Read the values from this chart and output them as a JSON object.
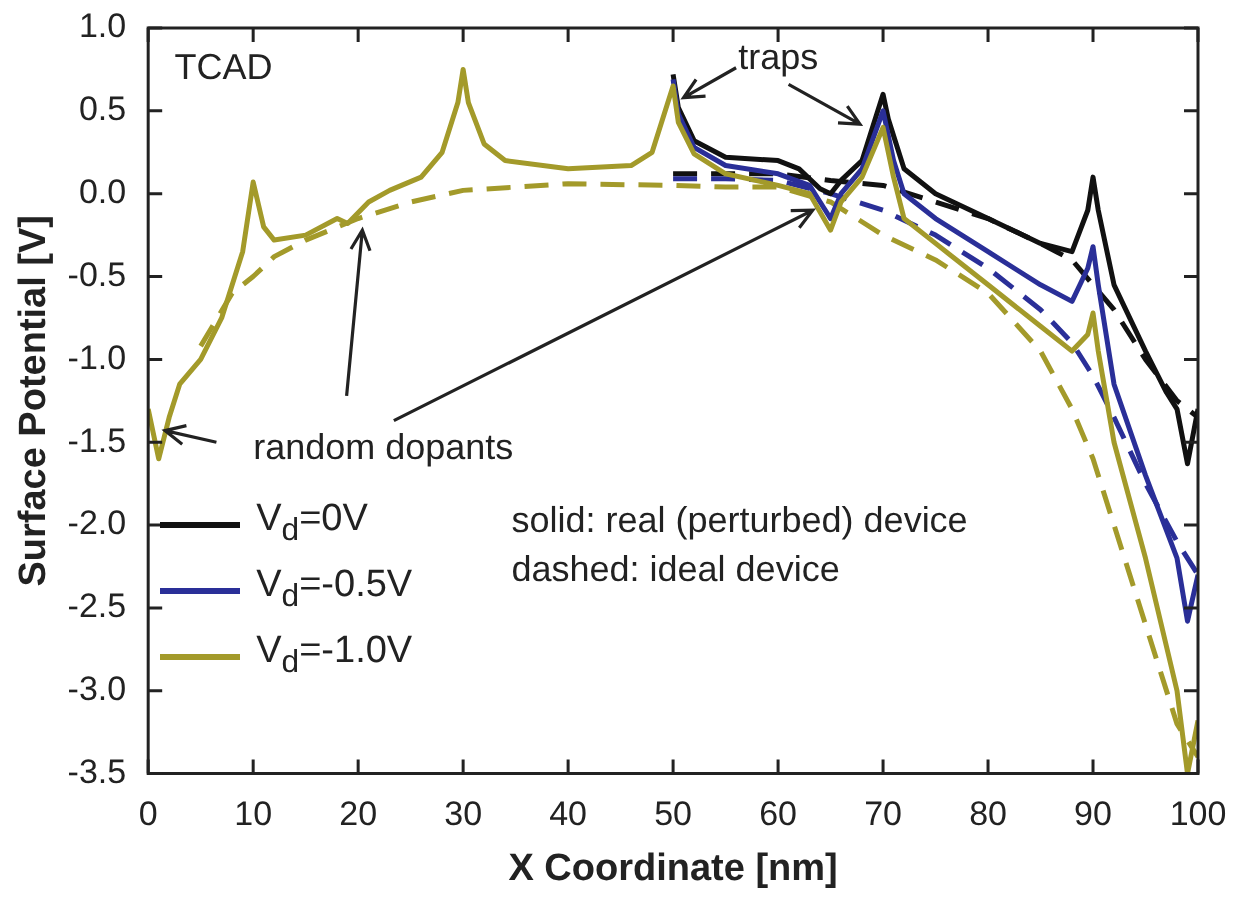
{
  "chart_data": {
    "type": "line",
    "xlabel": "X Coordinate [nm]",
    "ylabel": "Surface Potential [V]",
    "annotations": [
      "TCAD",
      "traps",
      "random dopants",
      "solid: real (perturbed) device",
      "dashed: ideal device"
    ],
    "xlim": [
      0,
      100
    ],
    "xticks": [
      0,
      10,
      20,
      30,
      40,
      50,
      60,
      70,
      80,
      90,
      100
    ],
    "ylim": [
      -3.5,
      1.0
    ],
    "yticks": [
      {
        "value": 1,
        "label": "1.0"
      },
      {
        "value": 0.5,
        "label": "0.5"
      },
      {
        "value": 0,
        "label": "0.0"
      },
      {
        "value": -0.5,
        "label": "-0.5"
      },
      {
        "value": -1,
        "label": "-1.0"
      },
      {
        "value": -1.5,
        "label": "-1.5"
      },
      {
        "value": -2,
        "label": "-2.0"
      },
      {
        "value": -2.5,
        "label": "-2.5"
      },
      {
        "value": -3,
        "label": "-3.0"
      },
      {
        "value": -3.5,
        "label": "-3.5"
      }
    ],
    "grid": false,
    "legend": "bottom left",
    "marker": "none",
    "series": [
      {
        "name": "V$_{d}$=0V",
        "color": "#111111",
        "line_style": "solid",
        "x": [
          50,
          50.5,
          52,
          55,
          60,
          62,
          64,
          65,
          66,
          68,
          69.5,
          70,
          70.5,
          72,
          75,
          80,
          85,
          88,
          89.5,
          90,
          90.5,
          92,
          95,
          97,
          98,
          99,
          100
        ],
        "values": [
          0.72,
          0.52,
          0.32,
          0.22,
          0.2,
          0.15,
          0.03,
          0.0,
          0.08,
          0.2,
          0.5,
          0.6,
          0.45,
          0.15,
          0.0,
          -0.15,
          -0.3,
          -0.35,
          -0.1,
          0.1,
          -0.1,
          -0.55,
          -0.95,
          -1.2,
          -1.3,
          -1.63,
          -1.3
        ]
      },
      {
        "name": "V$_{d}$=-0.5V",
        "color": "#2a2f98",
        "line_style": "solid",
        "x": [
          50,
          50.5,
          52,
          55,
          60,
          63,
          64.5,
          65,
          66,
          68,
          70,
          71,
          72,
          75,
          80,
          85,
          88,
          89.5,
          90,
          90.5,
          92,
          95,
          98,
          99,
          100
        ],
        "values": [
          0.69,
          0.48,
          0.28,
          0.17,
          0.12,
          0.05,
          -0.1,
          -0.15,
          0.0,
          0.15,
          0.5,
          0.2,
          0.0,
          -0.15,
          -0.35,
          -0.55,
          -0.65,
          -0.45,
          -0.32,
          -0.55,
          -1.15,
          -1.7,
          -2.2,
          -2.58,
          -2.3
        ]
      },
      {
        "name": "V$_{d}$=-1.0V",
        "color": "#a39a2a",
        "line_style": "solid",
        "x": [
          0,
          1,
          2,
          3,
          5,
          7,
          9,
          10,
          11,
          12,
          15,
          18,
          19,
          21,
          23,
          26,
          28,
          29.5,
          30,
          30.5,
          32,
          34,
          40,
          46,
          48,
          49.5,
          50,
          50.5,
          52,
          55,
          60,
          63,
          65,
          66,
          68,
          70,
          71,
          72,
          75,
          80,
          85,
          88,
          89.5,
          90,
          90.5,
          92,
          95,
          98,
          99,
          100
        ],
        "values": [
          -1.3,
          -1.6,
          -1.35,
          -1.15,
          -1.0,
          -0.75,
          -0.35,
          0.07,
          -0.2,
          -0.28,
          -0.25,
          -0.15,
          -0.18,
          -0.05,
          0.02,
          0.1,
          0.25,
          0.55,
          0.75,
          0.55,
          0.3,
          0.2,
          0.15,
          0.17,
          0.25,
          0.55,
          0.65,
          0.43,
          0.24,
          0.12,
          0.05,
          0.0,
          -0.22,
          -0.05,
          0.1,
          0.4,
          0.1,
          -0.15,
          -0.3,
          -0.55,
          -0.8,
          -0.95,
          -0.85,
          -0.72,
          -0.95,
          -1.5,
          -2.2,
          -3.0,
          -3.5,
          -3.18
        ]
      },
      {
        "color": "#111111",
        "line_style": "dashed",
        "x": [
          50,
          55,
          60,
          65,
          70,
          75,
          80,
          85,
          88,
          90,
          92,
          95,
          98,
          100
        ],
        "values": [
          0.12,
          0.12,
          0.12,
          0.08,
          0.05,
          -0.05,
          -0.15,
          -0.3,
          -0.4,
          -0.55,
          -0.7,
          -1.0,
          -1.25,
          -1.35
        ]
      },
      {
        "color": "#2a2f98",
        "line_style": "dashed",
        "x": [
          50,
          55,
          60,
          65,
          70,
          75,
          80,
          85,
          88,
          90,
          92,
          95,
          98,
          100
        ],
        "values": [
          0.09,
          0.09,
          0.08,
          0.0,
          -0.1,
          -0.25,
          -0.45,
          -0.7,
          -0.9,
          -1.1,
          -1.35,
          -1.75,
          -2.1,
          -2.3
        ]
      },
      {
        "color": "#a39a2a",
        "line_style": "dashed",
        "x": [
          5,
          8,
          10,
          12,
          15,
          20,
          25,
          30,
          40,
          50,
          55,
          60,
          65,
          70,
          75,
          80,
          85,
          88,
          90,
          92,
          95,
          98,
          100
        ],
        "values": [
          -0.92,
          -0.6,
          -0.5,
          -0.38,
          -0.28,
          -0.15,
          -0.05,
          0.02,
          0.06,
          0.05,
          0.04,
          0.04,
          -0.05,
          -0.25,
          -0.4,
          -0.6,
          -0.95,
          -1.3,
          -1.6,
          -2.0,
          -2.6,
          -3.2,
          -3.4
        ]
      }
    ]
  }
}
